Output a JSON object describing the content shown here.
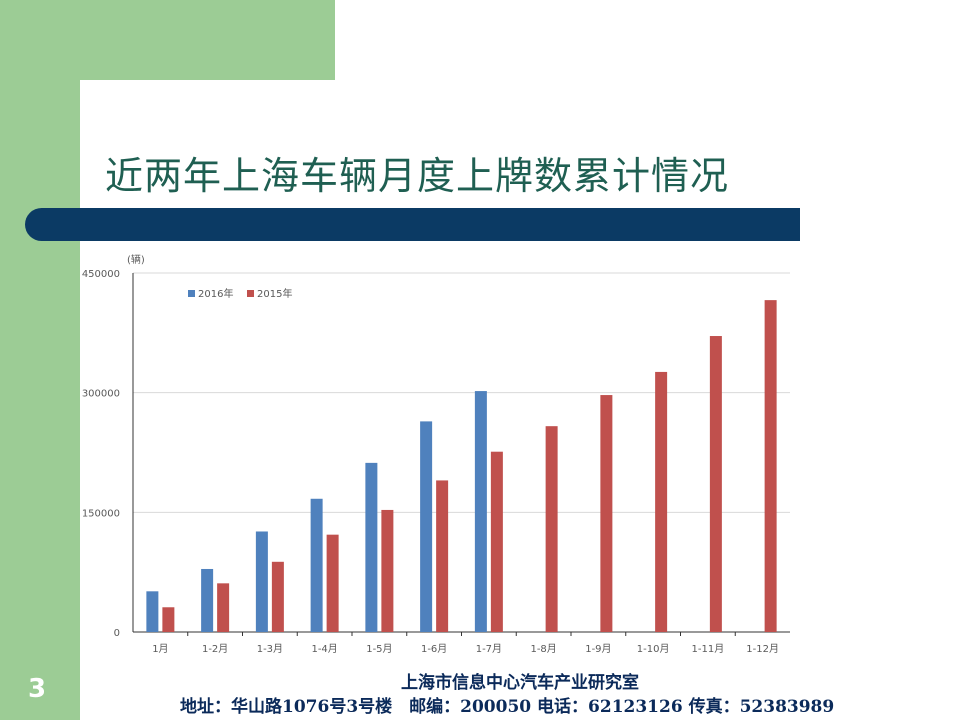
{
  "slide": {
    "title": "近两年上海车辆月度上牌数累计情况",
    "page_number": "3",
    "footer_org": "上海市信息中心汽车产业研究室",
    "footer_contact": "地址：华山路1076号3号楼　邮编：200050 电话：62123126 传真：52383989"
  },
  "colors": {
    "green": "#9ccc95",
    "navy": "#0b3a64",
    "s2016": "#4f81bd",
    "s2015": "#c0504d"
  },
  "chart_data": {
    "type": "bar",
    "title": "",
    "ylabel": "(辆)",
    "xlabel": "",
    "ylim": [
      0,
      450000
    ],
    "yticks": [
      0,
      150000,
      300000,
      450000
    ],
    "grid": true,
    "legend_position": "top-left",
    "categories": [
      "1月",
      "1-2月",
      "1-3月",
      "1-4月",
      "1-5月",
      "1-6月",
      "1-7月",
      "1-8月",
      "1-9月",
      "1-10月",
      "1-11月",
      "1-12月"
    ],
    "series": [
      {
        "name": "2016年",
        "color": "#4f81bd",
        "values": [
          51000,
          79000,
          126000,
          167000,
          212000,
          264000,
          302000,
          null,
          null,
          null,
          null,
          null
        ]
      },
      {
        "name": "2015年",
        "color": "#c0504d",
        "values": [
          31000,
          61000,
          88000,
          122000,
          153000,
          190000,
          226000,
          258000,
          297000,
          326000,
          371000,
          416000
        ]
      }
    ]
  }
}
